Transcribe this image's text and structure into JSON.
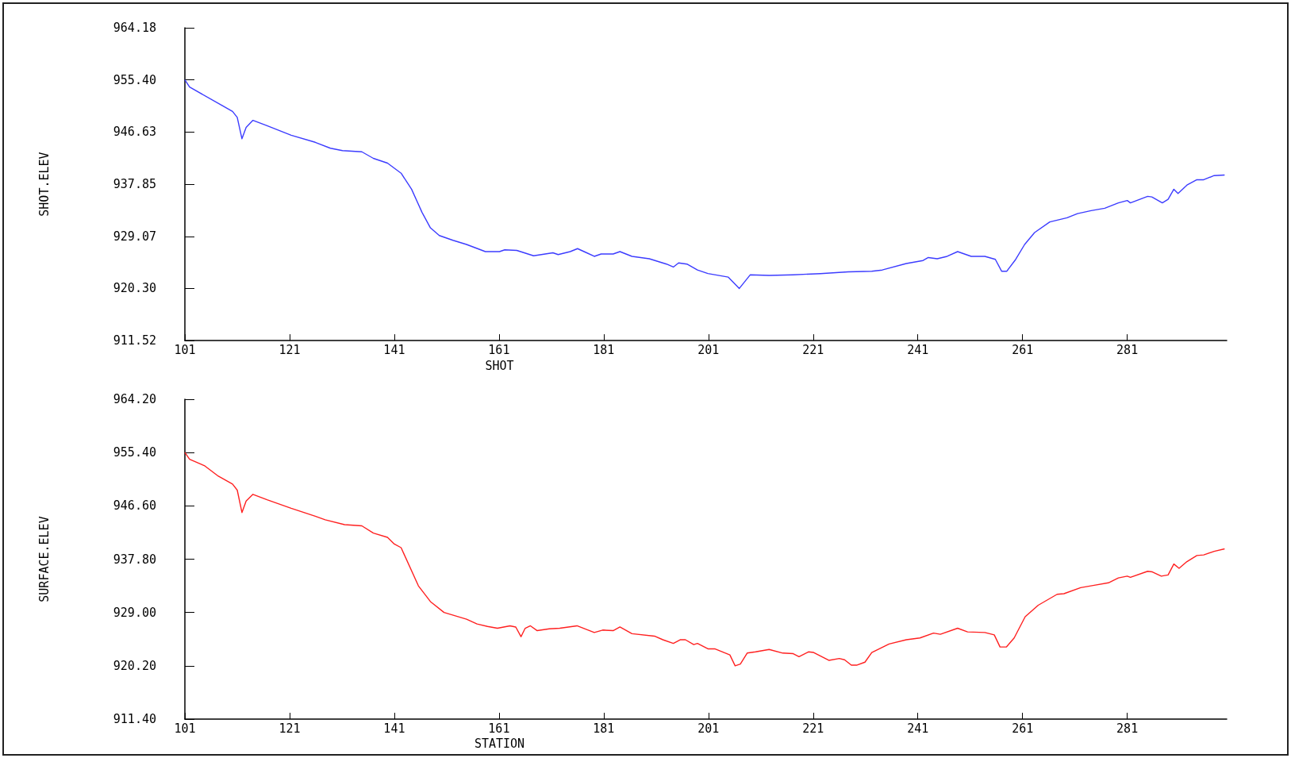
{
  "chart_data": [
    {
      "type": "line",
      "xlabel": "SHOT",
      "ylabel": "SHOT.ELEV",
      "marker": "none",
      "line_style": "solid",
      "xlim": [
        101,
        300
      ],
      "xticks": [
        101,
        121,
        141,
        161,
        181,
        201,
        221,
        241,
        261,
        281
      ],
      "ylim": [
        911.52,
        964.18
      ],
      "yticks": [
        {
          "value": 911.52,
          "label": "911.52"
        },
        {
          "value": 920.3,
          "label": "920.30"
        },
        {
          "value": 929.07,
          "label": "929.07"
        },
        {
          "value": 937.85,
          "label": "937.85"
        },
        {
          "value": 946.63,
          "label": "946.63"
        },
        {
          "value": 955.4,
          "label": "955.40"
        },
        {
          "value": 964.18,
          "label": "964.18"
        }
      ],
      "series": [
        {
          "color": "#3c3cff",
          "x": [
            101,
            101.9,
            108.1,
            110.1,
            111,
            111.9,
            112.7,
            114,
            116.7,
            121.3,
            125.9,
            128.8,
            131.1,
            134.8,
            137,
            139.7,
            142.3,
            144.3,
            146.3,
            147.9,
            149.6,
            152.2,
            154.8,
            158.4,
            161.1,
            162.1,
            164.4,
            167.6,
            171.3,
            172.3,
            174.6,
            176,
            177.5,
            179.2,
            180.5,
            182.8,
            184.1,
            186.4,
            189.7,
            193,
            194.3,
            195.3,
            196.9,
            198.9,
            200.9,
            204.8,
            206.9,
            209,
            212.6,
            217.2,
            222.4,
            227.7,
            232.2,
            234.2,
            238.8,
            242,
            243,
            244.7,
            246.6,
            248.6,
            251.2,
            253.8,
            255.8,
            257,
            258,
            259.7,
            261.4,
            263.3,
            266.2,
            269.5,
            271.5,
            274.1,
            276.7,
            279.3,
            281,
            281.6,
            284.9,
            285.7,
            287.7,
            288.8,
            289.9,
            290.7,
            292.4,
            294.3,
            295.6,
            297.6,
            299.6
          ],
          "values": [
            955.4,
            954.2,
            951.1,
            950.1,
            949.1,
            945.5,
            947.4,
            948.6,
            947.7,
            946.1,
            944.9,
            943.9,
            943.5,
            943.3,
            942.2,
            941.4,
            939.7,
            937.0,
            933.1,
            930.5,
            929.2,
            928.4,
            927.7,
            926.5,
            926.5,
            926.8,
            926.7,
            925.8,
            926.3,
            926.0,
            926.5,
            927.0,
            926.4,
            925.7,
            926.1,
            926.1,
            926.5,
            925.7,
            925.3,
            924.4,
            923.9,
            924.6,
            924.4,
            923.4,
            922.8,
            922.2,
            920.3,
            922.6,
            922.5,
            922.6,
            922.8,
            923.1,
            923.2,
            923.4,
            924.5,
            925.0,
            925.5,
            925.3,
            925.7,
            926.5,
            925.7,
            925.7,
            925.2,
            923.2,
            923.2,
            925.2,
            927.7,
            929.7,
            931.5,
            932.2,
            932.9,
            933.4,
            933.8,
            934.7,
            935.1,
            934.7,
            935.8,
            935.7,
            934.7,
            935.3,
            937.0,
            936.3,
            937.7,
            938.6,
            938.6,
            939.3,
            939.4
          ]
        }
      ]
    },
    {
      "type": "line",
      "xlabel": "STATION",
      "ylabel": "SURFACE.ELEV",
      "marker": "none",
      "line_style": "solid",
      "xlim": [
        101,
        300
      ],
      "xticks": [
        101,
        121,
        141,
        161,
        181,
        201,
        221,
        241,
        261,
        281
      ],
      "ylim": [
        911.4,
        964.2
      ],
      "yticks": [
        {
          "value": 911.4,
          "label": "911.40"
        },
        {
          "value": 920.2,
          "label": "920.20"
        },
        {
          "value": 929.0,
          "label": "929.00"
        },
        {
          "value": 937.8,
          "label": "937.80"
        },
        {
          "value": 946.6,
          "label": "946.60"
        },
        {
          "value": 955.4,
          "label": "955.40"
        },
        {
          "value": 964.2,
          "label": "964.20"
        }
      ],
      "series": [
        {
          "color": "#ff2020",
          "x": [
            101,
            101.9,
            104.8,
            107.4,
            110.1,
            111,
            111.9,
            112.7,
            114,
            116.7,
            121.3,
            125.9,
            127.8,
            131.5,
            134.8,
            137,
            139.7,
            141,
            142.3,
            145.6,
            147.9,
            150.5,
            154.8,
            156.8,
            158.8,
            160.7,
            163.1,
            164.2,
            165.2,
            166,
            167,
            168.3,
            170.6,
            172.6,
            175.9,
            179.2,
            180.8,
            182.8,
            184.1,
            186.4,
            190.7,
            192.3,
            194.3,
            195.6,
            196.6,
            198.2,
            198.9,
            200.9,
            202.2,
            205.1,
            206.1,
            207.1,
            208.4,
            210,
            212.6,
            215.2,
            217.2,
            218.3,
            220.1,
            221.1,
            224,
            226,
            227,
            228.3,
            229.3,
            230.9,
            232.2,
            235.5,
            238.8,
            241.4,
            244,
            245.3,
            248.6,
            250.5,
            253.8,
            255.6,
            256.7,
            257.9,
            259.4,
            261.5,
            264,
            267.6,
            268.9,
            272.1,
            274.7,
            277.4,
            279.3,
            281,
            281.6,
            284.9,
            285.8,
            287.5,
            288.8,
            289.9,
            290.9,
            292.4,
            294.3,
            295.6,
            297.6,
            299.6
          ],
          "values": [
            955.4,
            954.3,
            953.2,
            951.5,
            950.2,
            949.2,
            945.5,
            947.4,
            948.5,
            947.6,
            946.2,
            944.9,
            944.3,
            943.5,
            943.3,
            942.1,
            941.4,
            940.3,
            939.7,
            933.4,
            930.8,
            929.0,
            927.9,
            927.1,
            926.7,
            926.4,
            926.8,
            926.6,
            925.0,
            926.4,
            926.8,
            926.0,
            926.3,
            926.4,
            926.8,
            925.7,
            926.1,
            926.0,
            926.6,
            925.5,
            925.1,
            924.5,
            923.9,
            924.5,
            924.5,
            923.7,
            923.9,
            923.0,
            923.0,
            922.0,
            920.2,
            920.5,
            922.3,
            922.5,
            922.9,
            922.3,
            922.2,
            921.7,
            922.5,
            922.4,
            921.1,
            921.4,
            921.2,
            920.3,
            920.3,
            920.8,
            922.4,
            923.8,
            924.5,
            924.8,
            925.6,
            925.4,
            926.4,
            925.8,
            925.7,
            925.3,
            923.3,
            923.3,
            924.8,
            928.3,
            930.2,
            932.0,
            932.1,
            933.1,
            933.5,
            933.9,
            934.7,
            935.0,
            934.8,
            935.8,
            935.7,
            935.0,
            935.2,
            937.0,
            936.3,
            937.4,
            938.4,
            938.5,
            939.1,
            939.5
          ]
        }
      ]
    }
  ]
}
